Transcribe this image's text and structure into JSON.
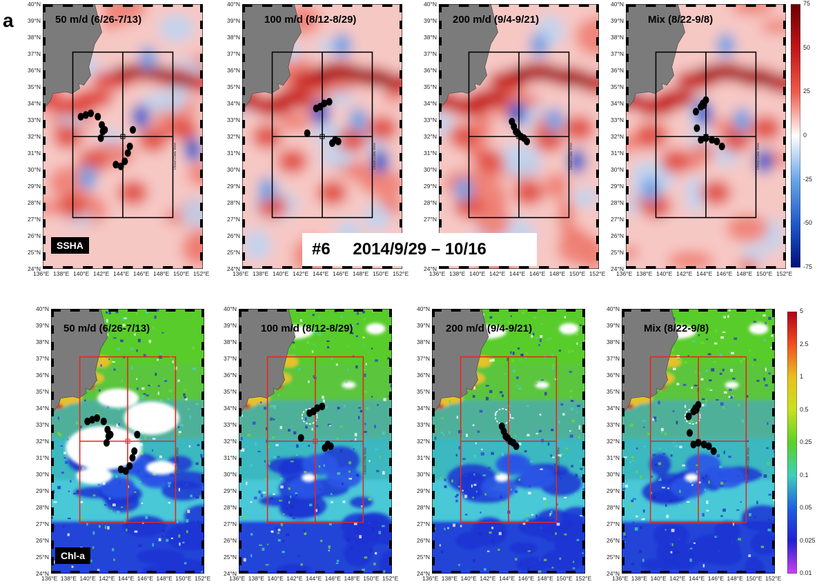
{
  "figure_letter": "a",
  "center_label": {
    "id": "#6",
    "dates": "2014/9/29 – 10/16"
  },
  "rows": [
    {
      "key": "ssha",
      "tag": "SSHA"
    },
    {
      "key": "chl",
      "tag": "Chl-a"
    }
  ],
  "panel_titles": [
    "50 m/d (6/26-7/13)",
    "100 m/d (8/12-8/29)",
    "200 m/d (9/4-9/21)",
    "Mix (8/22-9/8)"
  ],
  "lat_labels": [
    "40°N",
    "39°N",
    "38°N",
    "37°N",
    "36°N",
    "35°N",
    "34°N",
    "33°N",
    "32°N",
    "31°N",
    "30°N",
    "29°N",
    "28°N",
    "27°N",
    "26°N",
    "25°N",
    "24°N"
  ],
  "lon_labels": [
    "136°E",
    "138°E",
    "140°E",
    "142°E",
    "144°E",
    "146°E",
    "148°E",
    "150°E",
    "152°E"
  ],
  "watermark": "Ocean Data View",
  "colorbars": {
    "ssha": {
      "ticks": [
        "75",
        "50",
        "25",
        "0",
        "-25",
        "-50",
        "-75"
      ],
      "colors": [
        "#6b0000",
        "#c0141a",
        "#ee5a4b",
        "#ffffff",
        "#6aa6e6",
        "#1f59c9",
        "#00107a"
      ]
    },
    "chl": {
      "ticks": [
        "5",
        "2.5",
        "1",
        "0.5",
        "0.25",
        "0.1",
        "0.05",
        "0.025",
        "0.01"
      ],
      "colors": [
        "#b0001a",
        "#f05020",
        "#e8c020",
        "#c8e020",
        "#5ad02a",
        "#3ed0b8",
        "#2060e0",
        "#2020d0",
        "#d040f0"
      ]
    }
  },
  "tracks": [
    [
      [
        139.8,
        33.2
      ],
      [
        140.3,
        33.3
      ],
      [
        140.8,
        33.4
      ],
      [
        141.5,
        33.2
      ],
      [
        141.9,
        32.7
      ],
      [
        142.0,
        32.3
      ],
      [
        141.8,
        31.9
      ],
      [
        142.2,
        32.4
      ],
      [
        143.3,
        30.3
      ],
      [
        143.8,
        30.2
      ],
      [
        144.2,
        30.5
      ],
      [
        144.5,
        31.0
      ],
      [
        144.7,
        31.4
      ],
      [
        145.0,
        32.4
      ]
    ],
    [
      [
        142.5,
        32.2
      ],
      [
        143.4,
        33.7
      ],
      [
        143.8,
        33.8
      ],
      [
        144.2,
        34.0
      ],
      [
        144.7,
        34.1
      ],
      [
        145.0,
        31.6
      ],
      [
        145.3,
        31.8
      ],
      [
        145.6,
        31.7
      ]
    ],
    [
      [
        143.3,
        32.9
      ],
      [
        143.5,
        32.6
      ],
      [
        143.7,
        32.3
      ],
      [
        143.9,
        32.2
      ],
      [
        144.2,
        32.0
      ],
      [
        144.5,
        31.9
      ],
      [
        144.8,
        31.7
      ]
    ],
    [
      [
        143.1,
        32.5
      ],
      [
        143.0,
        33.5
      ],
      [
        143.5,
        33.8
      ],
      [
        143.8,
        33.9
      ],
      [
        144.0,
        34.2
      ],
      [
        143.7,
        34.0
      ],
      [
        143.5,
        31.8
      ],
      [
        144.0,
        31.9
      ],
      [
        144.6,
        31.8
      ],
      [
        145.1,
        31.7
      ],
      [
        145.6,
        31.4
      ]
    ]
  ]
}
